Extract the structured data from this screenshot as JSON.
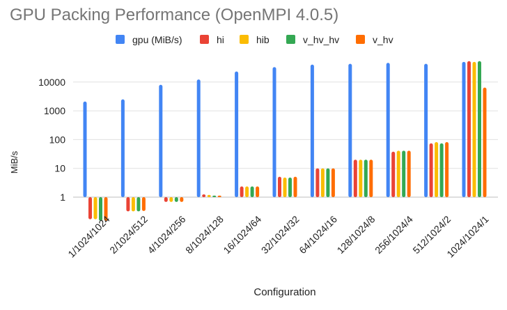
{
  "chart_data": {
    "type": "bar",
    "title": "GPU Packing Performance (OpenMPI 4.0.5)",
    "xlabel": "Configuration",
    "ylabel": "MiB/s",
    "yscale": "log",
    "ylim": [
      0.1,
      100000
    ],
    "baseline": 1,
    "yticks": [
      1,
      10,
      100,
      1000,
      10000
    ],
    "ytick_labels": [
      "1",
      "10",
      "100",
      "1000",
      "10000"
    ],
    "grid": true,
    "legend_position": "top",
    "categories": [
      "1/1024/1024",
      "2/1024/512",
      "4/1024/256",
      "8/1024/128",
      "16/1024/64",
      "32/1024/32",
      "64/1024/16",
      "128/1024/8",
      "256/1024/4",
      "512/1024/2",
      "1024/1024/1"
    ],
    "series": [
      {
        "name": "gpu (MiB/s)",
        "color": "#4285F4",
        "values": [
          2100,
          2500,
          8000,
          12300,
          23300,
          33000,
          40500,
          43000,
          46500,
          43000,
          50000
        ]
      },
      {
        "name": "hi",
        "color": "#EA4335",
        "values": [
          0.17,
          0.32,
          0.68,
          1.25,
          2.35,
          5.1,
          10,
          20,
          38,
          74,
          53500
        ]
      },
      {
        "name": "hib",
        "color": "#FBBC04",
        "values": [
          0.17,
          0.32,
          0.68,
          1.2,
          2.35,
          4.8,
          10,
          20,
          41,
          82,
          50000
        ]
      },
      {
        "name": "v_hv_hv",
        "color": "#34A853",
        "values": [
          0.15,
          0.32,
          0.68,
          1.13,
          2.35,
          4.8,
          10,
          20,
          41,
          74,
          53500
        ]
      },
      {
        "name": "v_hv",
        "color": "#FF6D01",
        "values": [
          0.15,
          0.33,
          0.68,
          1.13,
          2.35,
          5.1,
          10,
          20,
          41,
          82,
          6400
        ]
      }
    ]
  }
}
